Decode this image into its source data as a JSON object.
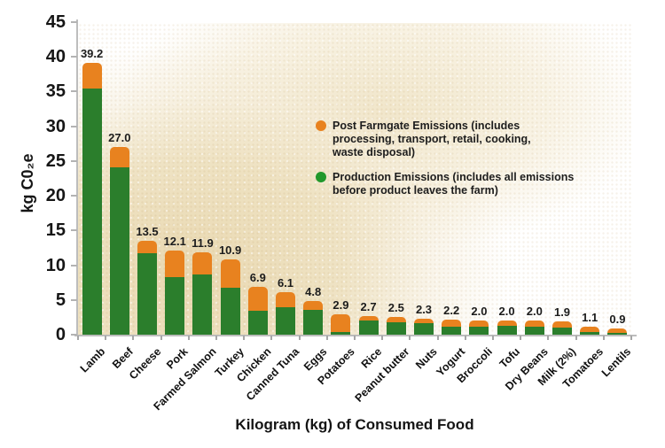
{
  "chart_data": {
    "type": "bar",
    "stacked": true,
    "xlabel": "Kilogram (kg) of Consumed Food",
    "ylabel": "kg C0₂e",
    "ylim": [
      0,
      45
    ],
    "yticks": [
      45,
      40,
      35,
      30,
      25,
      20,
      15,
      10,
      5,
      0
    ],
    "grid": false,
    "categories": [
      "Lamb",
      "Beef",
      "Cheese",
      "Pork",
      "Farmed Salmon",
      "Turkey",
      "Chicken",
      "Canned Tuna",
      "Eggs",
      "Potatoes",
      "Rice",
      "Peanut butter",
      "Nuts",
      "Yogurt",
      "Broccoli",
      "Tofu",
      "Dry Beans",
      "Milk (2%)",
      "Tomatoes",
      "Lentils"
    ],
    "total_labels": [
      "39.2",
      "27.0",
      "13.5",
      "12.1",
      "11.9",
      "10.9",
      "6.9",
      "6.1",
      "4.8",
      "2.9",
      "2.7",
      "2.5",
      "2.3",
      "2.2",
      "2.0",
      "2.0",
      "2.0",
      "1.9",
      "1.1",
      "0.9"
    ],
    "totals": [
      39.2,
      27.0,
      13.5,
      12.1,
      11.9,
      10.9,
      6.9,
      6.1,
      4.8,
      2.9,
      2.7,
      2.5,
      2.3,
      2.2,
      2.0,
      2.0,
      2.0,
      1.9,
      1.1,
      0.9
    ],
    "series": [
      {
        "name": "Production Emissions",
        "color": "#2b7e2c",
        "values": [
          35.4,
          24.1,
          11.7,
          8.3,
          8.7,
          6.8,
          3.5,
          3.9,
          3.6,
          0.4,
          2.1,
          1.8,
          1.6,
          1.2,
          1.2,
          1.3,
          1.2,
          1.0,
          0.4,
          0.3
        ]
      },
      {
        "name": "Post Farmgate Emissions",
        "color": "#e8821f",
        "values": [
          3.8,
          2.9,
          1.8,
          3.8,
          3.2,
          4.1,
          3.4,
          2.2,
          1.2,
          2.5,
          0.6,
          0.7,
          0.7,
          1.0,
          0.8,
          0.7,
          0.8,
          0.9,
          0.7,
          0.6
        ]
      }
    ],
    "legend_position": "upper-right-inside",
    "legend": [
      {
        "id": "post-farmgate",
        "color": "#e8821f",
        "lines": [
          "Post Farmgate Emissions (includes",
          "processing, transport, retail, cooking,",
          "waste disposal)"
        ]
      },
      {
        "id": "production",
        "color": "#21982b",
        "lines": [
          "Production Emissions (includes all emissions",
          "before product leaves the farm)"
        ]
      }
    ]
  },
  "colors": {
    "axis": "#bdbdbd",
    "text": "#161616",
    "plot_background": "#ecdfc0"
  }
}
